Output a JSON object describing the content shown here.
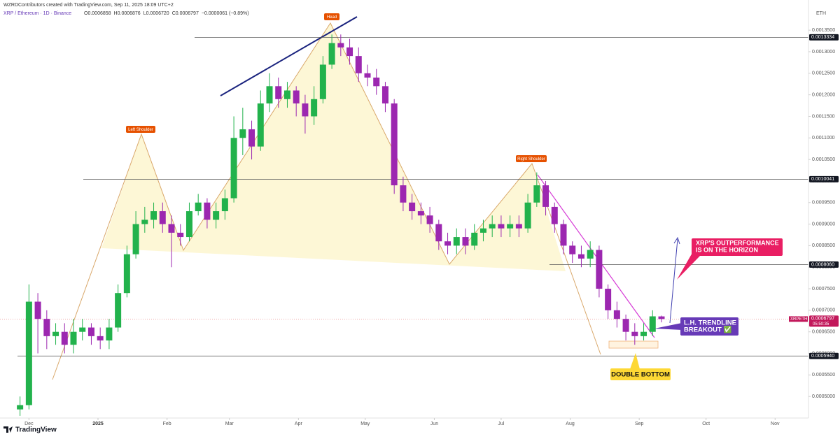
{
  "chart_data": {
    "type": "candlestick",
    "title": "WZRDContributors created with TradingView.com, Sep 11, 2025 18:09 UTC+2",
    "symbol_line": "XRP / Ethereum · 1D · Binance",
    "ohlc_text": [
      "O0.0006858",
      "H0.0006876",
      "L0.0006720",
      "C0.0006797",
      "−0.0000061 (−0.89%)"
    ],
    "currency": "ETH",
    "brand": "TradingView",
    "up_color": "#22b24c",
    "down_color": "#9c27b0",
    "x": [
      "2024-11-27",
      "2024-12-01",
      "2024-12-05",
      "2024-12-09",
      "2024-12-13",
      "2024-12-17",
      "2024-12-21",
      "2024-12-25",
      "2024-12-29",
      "2025-01-02",
      "2025-01-06",
      "2025-01-10",
      "2025-01-14",
      "2025-01-18",
      "2025-01-22",
      "2025-01-26",
      "2025-01-30",
      "2025-02-03",
      "2025-02-07",
      "2025-02-11",
      "2025-02-15",
      "2025-02-19",
      "2025-02-23",
      "2025-02-27",
      "2025-03-03",
      "2025-03-07",
      "2025-03-11",
      "2025-03-15",
      "2025-03-19",
      "2025-03-23",
      "2025-03-27",
      "2025-03-31",
      "2025-04-04",
      "2025-04-08",
      "2025-04-12",
      "2025-04-16",
      "2025-04-20",
      "2025-04-24",
      "2025-04-28",
      "2025-05-02",
      "2025-05-06",
      "2025-05-10",
      "2025-05-14",
      "2025-05-18",
      "2025-05-22",
      "2025-05-26",
      "2025-05-30",
      "2025-06-03",
      "2025-06-07",
      "2025-06-11",
      "2025-06-15",
      "2025-06-19",
      "2025-06-23",
      "2025-06-27",
      "2025-07-01",
      "2025-07-05",
      "2025-07-09",
      "2025-07-13",
      "2025-07-17",
      "2025-07-21",
      "2025-07-25",
      "2025-07-29",
      "2025-08-02",
      "2025-08-06",
      "2025-08-10",
      "2025-08-14",
      "2025-08-18",
      "2025-08-22",
      "2025-08-26",
      "2025-08-30",
      "2025-09-03",
      "2025-09-07",
      "2025-09-11"
    ],
    "open": [
      0.00047,
      0.00048,
      0.00072,
      0.00068,
      0.00064,
      0.00065,
      0.00062,
      0.00065,
      0.00066,
      0.00064,
      0.00063,
      0.00066,
      0.00074,
      0.00083,
      0.0009,
      0.00091,
      0.00093,
      0.0009,
      0.00088,
      0.00087,
      0.00093,
      0.00095,
      0.00091,
      0.00093,
      0.00096,
      0.0011,
      0.00112,
      0.00108,
      0.00118,
      0.00122,
      0.00119,
      0.00121,
      0.00118,
      0.00115,
      0.00119,
      0.00127,
      0.00132,
      0.00131,
      0.00129,
      0.00125,
      0.00124,
      0.00122,
      0.00118,
      0.00099,
      0.00095,
      0.00093,
      0.00092,
      0.0009,
      0.00086,
      0.00085,
      0.00087,
      0.00085,
      0.00088,
      0.00089,
      0.0009,
      0.00089,
      0.0009,
      0.00089,
      0.00095,
      0.00099,
      0.00094,
      0.0009,
      0.00085,
      0.00083,
      0.00082,
      0.00084,
      0.00075,
      0.0007,
      0.00068,
      0.00065,
      0.00064,
      0.00065,
      0.0006858
    ],
    "high": [
      0.0005,
      0.00076,
      0.00074,
      0.0007,
      0.00067,
      0.00067,
      0.00068,
      0.00068,
      0.00067,
      0.00066,
      0.00068,
      0.00076,
      0.00085,
      0.00093,
      0.00094,
      0.00095,
      0.00095,
      0.00092,
      0.0009,
      0.00095,
      0.00097,
      0.00096,
      0.00095,
      0.00098,
      0.00115,
      0.00117,
      0.00114,
      0.00121,
      0.00125,
      0.00124,
      0.00123,
      0.00122,
      0.0012,
      0.00122,
      0.00129,
      0.00134,
      0.00134,
      0.00133,
      0.00131,
      0.00127,
      0.00126,
      0.00123,
      0.00119,
      0.00101,
      0.00097,
      0.00095,
      0.00094,
      0.00091,
      0.00088,
      0.00089,
      0.00089,
      0.0009,
      0.00091,
      0.00092,
      0.00092,
      0.00092,
      0.00092,
      0.00097,
      0.00102,
      0.001,
      0.00095,
      0.00091,
      0.00086,
      0.00085,
      0.00086,
      0.00085,
      0.00076,
      0.00072,
      0.00069,
      0.00067,
      0.00067,
      0.0007,
      0.0006876
    ],
    "low": [
      0.000455,
      0.00047,
      0.0006,
      0.00061,
      0.00062,
      0.0006,
      0.0006,
      0.00063,
      0.00062,
      0.00061,
      0.00061,
      0.00065,
      0.00073,
      0.00082,
      0.00088,
      0.00089,
      0.00088,
      0.0008,
      0.00085,
      0.00086,
      0.00092,
      0.00089,
      0.00089,
      0.00091,
      0.00095,
      0.00106,
      0.00105,
      0.00107,
      0.00116,
      0.00117,
      0.00117,
      0.00115,
      0.00111,
      0.00113,
      0.00118,
      0.00126,
      0.00129,
      0.00127,
      0.00123,
      0.00122,
      0.0012,
      0.00116,
      0.00097,
      0.00093,
      0.00091,
      0.0009,
      0.00088,
      0.00084,
      0.00083,
      0.00083,
      0.00083,
      0.00084,
      0.00086,
      0.00087,
      0.00087,
      0.00087,
      0.00087,
      0.00088,
      0.00094,
      0.00092,
      0.00088,
      0.00083,
      0.00081,
      0.0008,
      0.0008,
      0.00073,
      0.00068,
      0.00066,
      0.00063,
      0.00062,
      0.00063,
      0.00064,
      0.000672
    ],
    "close": [
      0.00048,
      0.00072,
      0.00068,
      0.00064,
      0.00065,
      0.00062,
      0.00065,
      0.00066,
      0.00064,
      0.00063,
      0.00066,
      0.00074,
      0.00083,
      0.0009,
      0.00091,
      0.00093,
      0.0009,
      0.00088,
      0.00087,
      0.00093,
      0.00095,
      0.00091,
      0.00093,
      0.00096,
      0.0011,
      0.00112,
      0.00108,
      0.00118,
      0.00122,
      0.00119,
      0.00121,
      0.00118,
      0.00115,
      0.00119,
      0.00127,
      0.00132,
      0.00131,
      0.00129,
      0.00125,
      0.00124,
      0.00122,
      0.00118,
      0.00099,
      0.00095,
      0.00093,
      0.00092,
      0.0009,
      0.00086,
      0.00085,
      0.00087,
      0.00085,
      0.00088,
      0.00089,
      0.0009,
      0.00089,
      0.0009,
      0.00089,
      0.00095,
      0.00099,
      0.00094,
      0.0009,
      0.00085,
      0.00083,
      0.00082,
      0.00084,
      0.00075,
      0.0007,
      0.00068,
      0.00065,
      0.00064,
      0.00065,
      0.000686,
      0.0006797
    ],
    "xlim": [
      "2024-11-18",
      "2025-11-16"
    ],
    "xticks": [
      {
        "value": "2024-12-01",
        "label": "Dec"
      },
      {
        "value": "2025-01-01",
        "label": "2025"
      },
      {
        "value": "2025-02-01",
        "label": "Feb"
      },
      {
        "value": "2025-03-01",
        "label": "Mar"
      },
      {
        "value": "2025-04-01",
        "label": "Apr"
      },
      {
        "value": "2025-05-01",
        "label": "May"
      },
      {
        "value": "2025-06-01",
        "label": "Jun"
      },
      {
        "value": "2025-07-01",
        "label": "Jul"
      },
      {
        "value": "2025-08-01",
        "label": "Aug"
      },
      {
        "value": "2025-09-01",
        "label": "Sep"
      },
      {
        "value": "2025-10-01",
        "label": "Oct"
      },
      {
        "value": "2025-11-01",
        "label": "Nov"
      }
    ],
    "ylim": [
      0.00045,
      0.00142
    ],
    "yticks": [
      {
        "value": 0.0005,
        "label": "0.0005000"
      },
      {
        "value": 0.00055,
        "label": "0.0005500"
      },
      {
        "value": 0.0006,
        "label": "0.0006000"
      },
      {
        "value": 0.00065,
        "label": "0.0006500"
      },
      {
        "value": 0.0007,
        "label": "0.0007000"
      },
      {
        "value": 0.00075,
        "label": "0.0007500"
      },
      {
        "value": 0.0008,
        "label": "0.0008000"
      },
      {
        "value": 0.00085,
        "label": "0.0008500"
      },
      {
        "value": 0.0009,
        "label": "0.0009000"
      },
      {
        "value": 0.00095,
        "label": "0.0009500"
      },
      {
        "value": 0.001,
        "label": "0.0010000"
      },
      {
        "value": 0.00105,
        "label": "0.0010500"
      },
      {
        "value": 0.0011,
        "label": "0.0011000"
      },
      {
        "value": 0.00115,
        "label": "0.0011500"
      },
      {
        "value": 0.0012,
        "label": "0.0012000"
      },
      {
        "value": 0.00125,
        "label": "0.0012500"
      },
      {
        "value": 0.0013,
        "label": "0.0013000"
      },
      {
        "value": 0.00135,
        "label": "0.0013500"
      }
    ],
    "levels": [
      {
        "value": 0.0013334,
        "label": "0.0013334"
      },
      {
        "value": 0.0010041,
        "label": "0.0010041"
      },
      {
        "value": 0.000806,
        "label": "0.0008060"
      },
      {
        "value": 0.000594,
        "label": "0.0005940"
      }
    ],
    "last_price": {
      "value": 0.0006797,
      "label": "0.0006797",
      "tag": "XRPETH",
      "countdown": "05:50:35"
    },
    "annotations": {
      "head": "Head",
      "left_shoulder": "Left Shoulder",
      "right_shoulder": "Right Shoulder",
      "outperformance": [
        "XRP'S OUTPERFORMANCE",
        "IS ON THE HORIZON"
      ],
      "breakout": [
        "L.H. TRENDLINE",
        "BREAKOUT ✅"
      ],
      "double_bottom": "DOUBLE BOTTOM"
    }
  }
}
